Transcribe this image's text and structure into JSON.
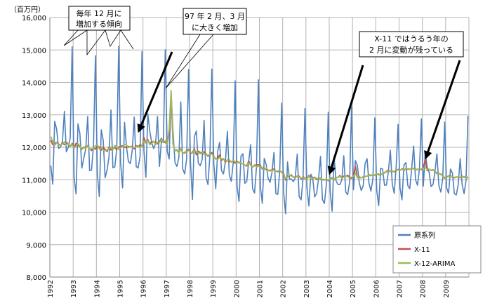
{
  "chart_data": {
    "type": "line",
    "unit_label": "（百万円）",
    "y_ticks": [
      "16,000",
      "15,000",
      "14,000",
      "13,000",
      "12,000",
      "11,000",
      "10,000",
      "9,000",
      "8,000"
    ],
    "ylim": [
      8000,
      16000
    ],
    "x_ticks": [
      "1992",
      "1993",
      "1994",
      "1995",
      "1996",
      "1997",
      "1998",
      "1999",
      "2000",
      "2001",
      "2002",
      "2003",
      "2004",
      "2005",
      "2006",
      "2007",
      "2008",
      "2009"
    ],
    "x_range_years": [
      1992,
      2010
    ],
    "grid": true,
    "legend_position": "bottom-right",
    "series": [
      {
        "name": "原系列",
        "color": "#4f81bd",
        "start": [
          1992,
          1
        ],
        "values": [
          11440,
          10860,
          12800,
          12560,
          11970,
          12000,
          12180,
          13110,
          11860,
          12000,
          12290,
          15100,
          11070,
          10560,
          12720,
          12420,
          11360,
          11670,
          11950,
          12950,
          11280,
          11300,
          12060,
          14820,
          11160,
          10480,
          12540,
          12220,
          11060,
          11300,
          11710,
          13150,
          11370,
          11400,
          11960,
          15120,
          11480,
          10750,
          12770,
          12020,
          11560,
          11500,
          11920,
          12930,
          11410,
          11360,
          11720,
          14950,
          11910,
          11070,
          13030,
          12500,
          12150,
          11960,
          12120,
          12950,
          11410,
          12190,
          12150,
          15010,
          11880,
          11640,
          13690,
          12490,
          11530,
          11410,
          11680,
          13400,
          11330,
          11180,
          11640,
          14400,
          11520,
          10390,
          12330,
          12500,
          11520,
          11430,
          11620,
          12830,
          11080,
          10850,
          11750,
          14410,
          11510,
          10720,
          11860,
          12150,
          11280,
          11180,
          11570,
          12490,
          11150,
          10950,
          11510,
          14050,
          10800,
          10330,
          11730,
          11800,
          10890,
          10950,
          11580,
          12080,
          10720,
          10590,
          11380,
          14080,
          10800,
          10270,
          11660,
          11470,
          11040,
          10920,
          11230,
          11840,
          10570,
          10550,
          11280,
          13360,
          10620,
          9950,
          11550,
          11020,
          11020,
          10940,
          11060,
          11790,
          10480,
          10380,
          11040,
          13200,
          10780,
          10190,
          11170,
          11040,
          10470,
          10580,
          11030,
          11720,
          10390,
          10270,
          10840,
          13080,
          10630,
          10030,
          11710,
          10970,
          10850,
          10850,
          11000,
          11740,
          10620,
          10540,
          10920,
          13250,
          10690,
          11590,
          11440,
          10900,
          10670,
          10810,
          11500,
          11650,
          10890,
          10650,
          11020,
          12910,
          10670,
          10200,
          11350,
          11330,
          10830,
          10840,
          11260,
          11910,
          10860,
          10580,
          11400,
          12710,
          10740,
          10380,
          11450,
          11530,
          10820,
          10720,
          11340,
          12040,
          11000,
          10830,
          11330,
          12880,
          10800,
          11840,
          11380,
          11230,
          10790,
          10850,
          11250,
          11800,
          10830,
          10620,
          11040,
          12780,
          10750,
          10580,
          11330,
          11200,
          10570,
          10530,
          10860,
          11650,
          10850,
          10570,
          10970,
          12970
        ]
      },
      {
        "name": "X-11",
        "color": "#c0504d",
        "start": [
          1992,
          1
        ],
        "values": [
          12220,
          12080,
          12120,
          12150,
          12100,
          12060,
          12130,
          12080,
          12140,
          12120,
          12020,
          12120,
          11970,
          12120,
          12080,
          12010,
          11950,
          12000,
          12010,
          12030,
          11960,
          11900,
          11980,
          11940,
          12030,
          12010,
          11910,
          12000,
          11930,
          11870,
          12010,
          11920,
          11960,
          11990,
          11930,
          12010,
          12020,
          12050,
          12010,
          11990,
          12030,
          12010,
          12040,
          11950,
          12050,
          12010,
          12080,
          12030,
          12300,
          12140,
          12240,
          12110,
          12170,
          12170,
          12150,
          12110,
          12170,
          12280,
          12150,
          12150,
          12090,
          12430,
          13600,
          12100,
          11910,
          11900,
          11860,
          11940,
          11830,
          11820,
          11900,
          11930,
          11810,
          11840,
          11960,
          11770,
          11880,
          11840,
          11810,
          11860,
          11800,
          11720,
          11780,
          11840,
          11720,
          11640,
          11670,
          11760,
          11600,
          11650,
          11540,
          11610,
          11560,
          11560,
          11570,
          11510,
          11560,
          11520,
          11510,
          11490,
          11450,
          11420,
          11580,
          11450,
          11390,
          11430,
          11460,
          11460,
          11450,
          11330,
          11340,
          11320,
          11300,
          11270,
          11310,
          11330,
          11260,
          11250,
          11270,
          11240,
          11200,
          10990,
          11110,
          11110,
          11150,
          11070,
          11090,
          11090,
          11110,
          11020,
          11100,
          11040,
          11010,
          11130,
          11020,
          11060,
          11080,
          11010,
          11010,
          11030,
          11010,
          10990,
          11020,
          10970,
          11030,
          11050,
          11000,
          11070,
          11070,
          11130,
          11050,
          11110,
          11100,
          11140,
          11050,
          11050,
          11120,
          11420,
          11060,
          11070,
          11060,
          11080,
          11100,
          11110,
          11150,
          11140,
          11140,
          11150,
          11190,
          11170,
          11150,
          11190,
          11210,
          11260,
          11290,
          11250,
          11270,
          11240,
          11280,
          11320,
          11290,
          11340,
          11280,
          11350,
          11320,
          11330,
          11350,
          11350,
          11320,
          11310,
          11320,
          11310,
          11370,
          11620,
          11280,
          11320,
          11290,
          11310,
          11240,
          11190,
          11200,
          11160,
          11130,
          11050,
          11090,
          11110,
          11120,
          11080,
          11060,
          11080,
          11080,
          11060,
          11110,
          11070,
          11120,
          11050
        ]
      },
      {
        "name": "X-12-ARIMA",
        "color": "#9bbb59",
        "start": [
          1992,
          1
        ],
        "values": [
          12330,
          12180,
          12060,
          12140,
          12080,
          12060,
          12110,
          12170,
          12060,
          12120,
          12030,
          12080,
          11970,
          12040,
          12110,
          12040,
          11930,
          11990,
          11970,
          12060,
          11950,
          11950,
          11970,
          12050,
          12080,
          11940,
          11980,
          11920,
          11890,
          11920,
          11970,
          12000,
          11920,
          12060,
          12000,
          11930,
          11990,
          12020,
          12090,
          12070,
          11990,
          12030,
          12000,
          11990,
          12020,
          12050,
          11980,
          12070,
          12200,
          12130,
          12210,
          12080,
          12110,
          12190,
          12080,
          12160,
          12140,
          12250,
          12140,
          12200,
          12090,
          12560,
          13750,
          12150,
          11890,
          11930,
          11810,
          11980,
          11800,
          11850,
          11880,
          11900,
          11850,
          11820,
          11920,
          11850,
          11840,
          11800,
          11860,
          11780,
          11780,
          11750,
          11780,
          11800,
          11700,
          11660,
          11620,
          11700,
          11640,
          11640,
          11580,
          11580,
          11620,
          11540,
          11590,
          11560,
          11520,
          11550,
          11500,
          11500,
          11440,
          11450,
          11520,
          11470,
          11380,
          11460,
          11400,
          11410,
          11420,
          11370,
          11310,
          11370,
          11280,
          11300,
          11290,
          11300,
          11260,
          11270,
          11280,
          11220,
          11170,
          11030,
          11080,
          11140,
          11120,
          11090,
          11060,
          11120,
          11080,
          11050,
          11080,
          11020,
          11020,
          11100,
          11030,
          11040,
          11060,
          11050,
          11010,
          11060,
          10990,
          11010,
          11010,
          10990,
          11030,
          11070,
          10990,
          11050,
          11080,
          11100,
          11060,
          11080,
          11120,
          11090,
          11060,
          11080,
          11100,
          11200,
          11060,
          11100,
          11050,
          11100,
          11090,
          11120,
          11140,
          11120,
          11160,
          11130,
          11200,
          11140,
          11180,
          11180,
          11230,
          11240,
          11260,
          11270,
          11250,
          11260,
          11300,
          11300,
          11300,
          11320,
          11300,
          11330,
          11340,
          11320,
          11360,
          11330,
          11310,
          11330,
          11310,
          11330,
          11360,
          11380,
          11310,
          11330,
          11280,
          11300,
          11260,
          11210,
          11180,
          11180,
          11110,
          11070,
          11080,
          11100,
          11100,
          11100,
          11070,
          11090,
          11060,
          11080,
          11090,
          11090,
          11110,
          11040
        ]
      }
    ],
    "annotations": [
      {
        "lines": [
          "毎年 12 月に",
          "増加する傾向"
        ]
      },
      {
        "lines": [
          "97 年 2 月、3 月",
          "に大きく増加"
        ]
      },
      {
        "lines": [
          "X-11 ではうるう年の",
          "2 月に変動が残っている"
        ]
      }
    ]
  }
}
